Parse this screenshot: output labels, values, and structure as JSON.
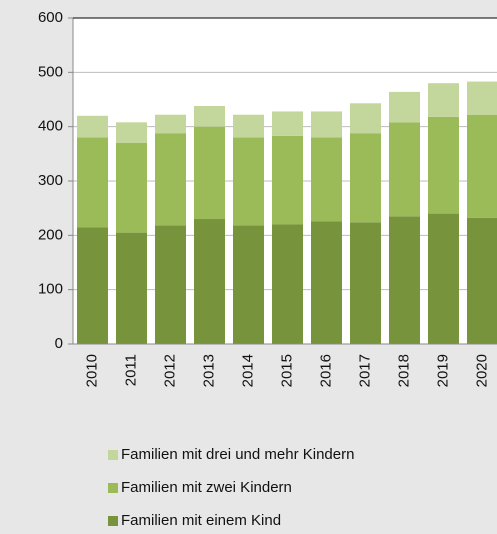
{
  "chart_data": {
    "type": "stacked_bar",
    "categories": [
      "2010",
      "2011",
      "2012",
      "2013",
      "2014",
      "2015",
      "2016",
      "2017",
      "2018",
      "2019",
      "2020"
    ],
    "series": [
      {
        "name": "Familien mit einem Kind",
        "color": "#77933c",
        "values": [
          215,
          205,
          218,
          230,
          218,
          220,
          226,
          224,
          235,
          240,
          232
        ]
      },
      {
        "name": "Familien mit zwei Kindern",
        "color": "#9bbb59",
        "values": [
          165,
          165,
          170,
          170,
          162,
          163,
          154,
          164,
          173,
          178,
          190
        ]
      },
      {
        "name": "Familien mit drei und mehr Kindern",
        "color": "#c3d69b",
        "values": [
          40,
          38,
          34,
          38,
          42,
          45,
          48,
          55,
          56,
          62,
          61
        ]
      }
    ],
    "ylim": [
      0,
      600
    ],
    "yticks": [
      0,
      100,
      200,
      300,
      400,
      500,
      600
    ],
    "grid": true
  }
}
